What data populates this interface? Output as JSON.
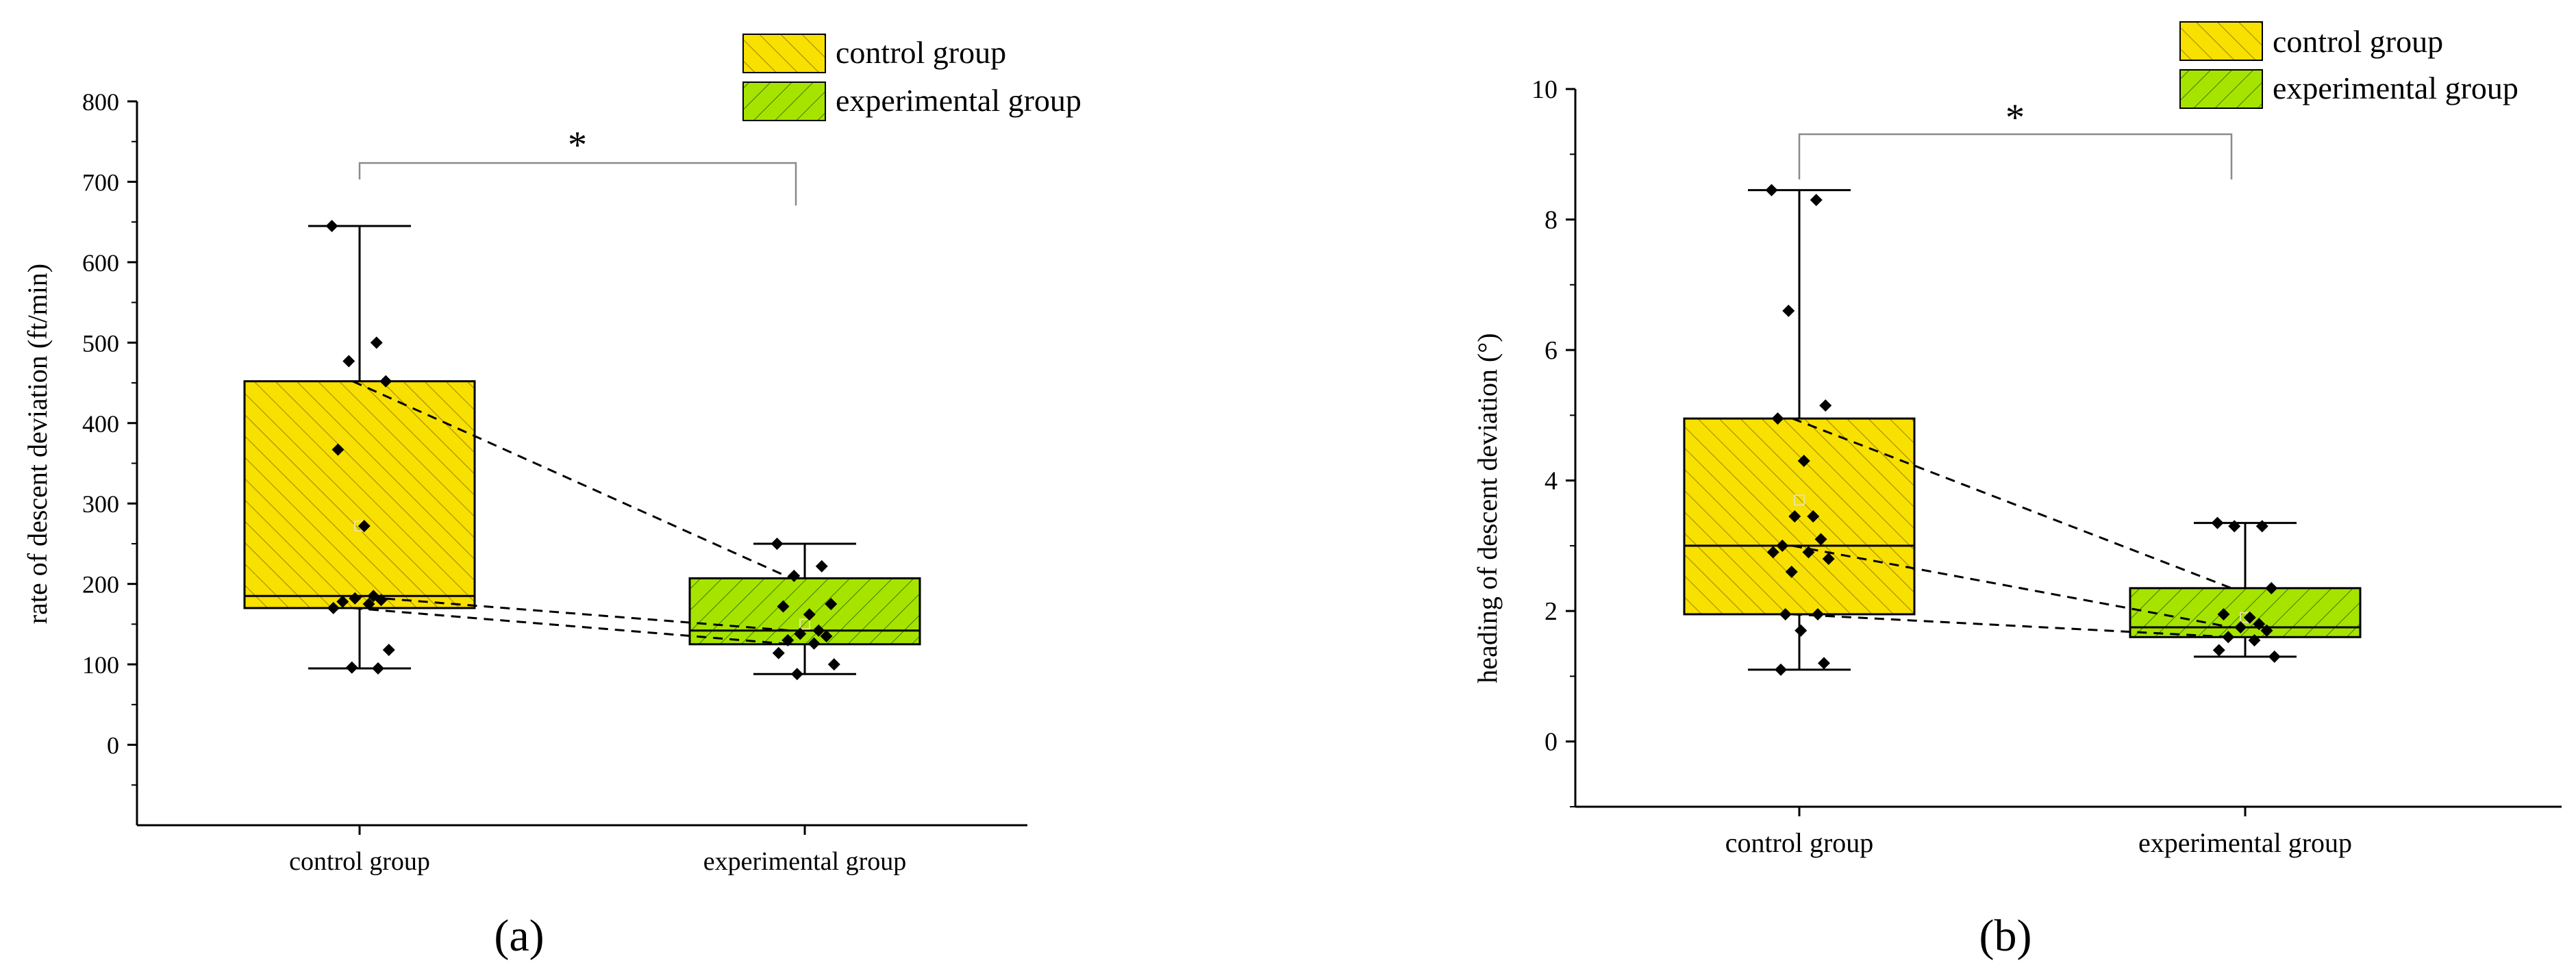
{
  "chart_data": [
    {
      "panel_label": "(a)",
      "type": "box",
      "ylabel": "rate of descent deviation (ft/min)",
      "ylim": [
        -100,
        800
      ],
      "yticks": [
        0,
        100,
        200,
        300,
        400,
        500,
        600,
        700,
        800
      ],
      "categories": [
        "control group",
        "experimental group"
      ],
      "legend": [
        "control group",
        "experimental group"
      ],
      "significance": "*",
      "boxes": [
        {
          "name": "control group",
          "min": 95,
          "q1": 170,
          "median": 185,
          "q3": 452,
          "max": 645,
          "mean": 272,
          "points": [
            645,
            500,
            477,
            452,
            367,
            272,
            185,
            182,
            180,
            178,
            175,
            170,
            118,
            96,
            95
          ]
        },
        {
          "name": "experimental group",
          "min": 88,
          "q1": 125,
          "median": 142,
          "q3": 207,
          "max": 250,
          "mean": 150,
          "points": [
            250,
            222,
            210,
            175,
            172,
            162,
            142,
            138,
            135,
            130,
            126,
            114,
            100,
            88
          ]
        }
      ],
      "paired_lines": [
        [
          452,
          207
        ],
        [
          185,
          142
        ],
        [
          170,
          125
        ]
      ]
    },
    {
      "panel_label": "(b)",
      "type": "box",
      "ylabel": "heading of descent deviation (°)",
      "ylim": [
        -1,
        10
      ],
      "yticks": [
        0,
        2,
        4,
        6,
        8,
        10
      ],
      "categories": [
        "control group",
        "experimental group"
      ],
      "legend": [
        "control group",
        "experimental group"
      ],
      "significance": "*",
      "boxes": [
        {
          "name": "control group",
          "min": 1.1,
          "q1": 1.95,
          "median": 3.0,
          "q3": 4.95,
          "max": 8.45,
          "mean": 3.7,
          "points": [
            8.45,
            8.3,
            6.6,
            5.15,
            4.95,
            4.3,
            3.45,
            3.45,
            3.1,
            3.0,
            2.9,
            2.9,
            2.8,
            2.6,
            1.95,
            1.95,
            1.7,
            1.2,
            1.1
          ]
        },
        {
          "name": "experimental group",
          "min": 1.3,
          "q1": 1.6,
          "median": 1.75,
          "q3": 2.35,
          "max": 3.35,
          "mean": 1.9,
          "points": [
            3.35,
            3.3,
            3.3,
            2.35,
            1.95,
            1.9,
            1.8,
            1.75,
            1.7,
            1.6,
            1.55,
            1.4,
            1.3
          ]
        }
      ],
      "paired_lines": [
        [
          4.95,
          2.35
        ],
        [
          3.0,
          1.75
        ],
        [
          1.95,
          1.6
        ]
      ]
    }
  ],
  "colors": {
    "control_fill": "#f8e000",
    "control_edge": "#b59a00",
    "experimental_fill": "#a6e400",
    "experimental_edge": "#4f8f00",
    "axis": "#000000",
    "bracket": "#8a8a8a"
  }
}
